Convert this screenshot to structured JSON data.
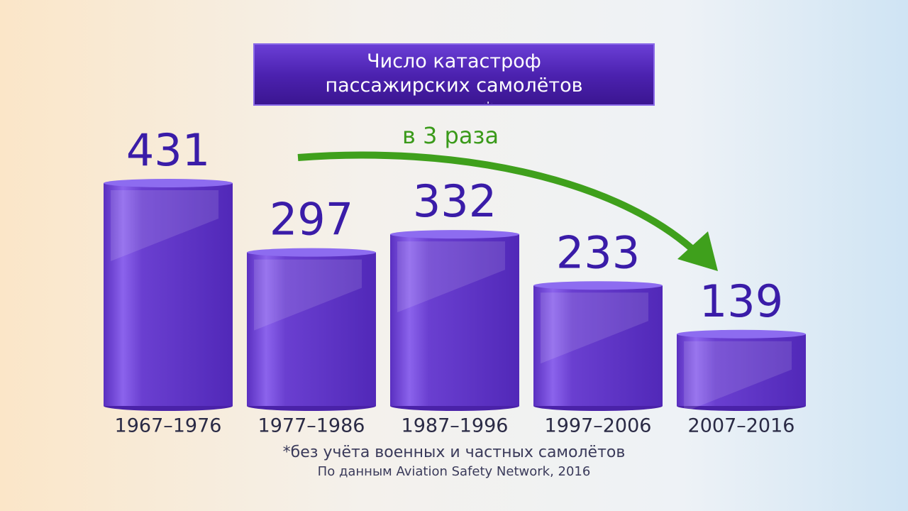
{
  "chart_data": {
    "type": "bar",
    "title": "Число катастроф пассажирских самолётов в мире*",
    "annotation": "в 3 раза",
    "categories": [
      "1967–1976",
      "1977–1986",
      "1987–1996",
      "1997–2006",
      "2007–2016"
    ],
    "values": [
      431,
      297,
      332,
      233,
      139
    ],
    "color": "#6a3fd0",
    "footnote": "*без учёта военных и частных самолётов",
    "source": "По данным Aviation Safety Network, 2016"
  }
}
